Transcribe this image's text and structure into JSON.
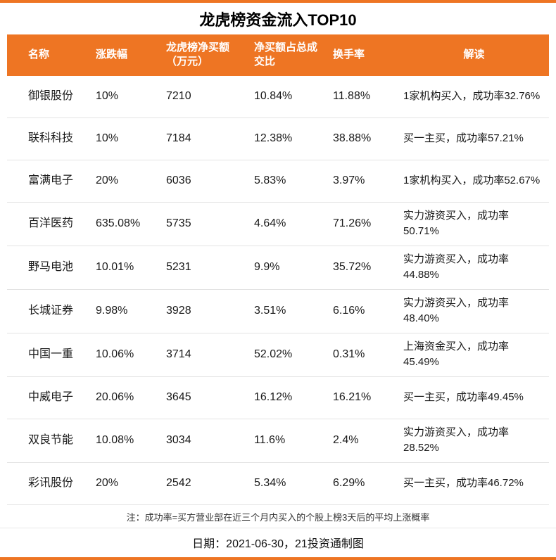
{
  "colors": {
    "accent": "#EE7523",
    "row_border": "#E3E3E3"
  },
  "chart_data": {
    "type": "table",
    "title": "龙虎榜资金流入TOP10",
    "columns": [
      "名称",
      "涨跌幅",
      "龙虎榜净买额（万元）",
      "净买额占总成交比",
      "换手率",
      "解读"
    ],
    "rows": [
      [
        "御银股份",
        "10%",
        "7210",
        "10.84%",
        "11.88%",
        "1家机构买入，成功率32.76%"
      ],
      [
        "联科科技",
        "10%",
        "7184",
        "12.38%",
        "38.88%",
        "买一主买，成功率57.21%"
      ],
      [
        "富满电子",
        "20%",
        "6036",
        "5.83%",
        "3.97%",
        "1家机构买入，成功率52.67%"
      ],
      [
        "百洋医药",
        "635.08%",
        "5735",
        "4.64%",
        "71.26%",
        "实力游资买入，成功率50.71%"
      ],
      [
        "野马电池",
        "10.01%",
        "5231",
        "9.9%",
        "35.72%",
        "实力游资买入，成功率44.88%"
      ],
      [
        "长城证券",
        "9.98%",
        "3928",
        "3.51%",
        "6.16%",
        "实力游资买入，成功率48.40%"
      ],
      [
        "中国一重",
        "10.06%",
        "3714",
        "52.02%",
        "0.31%",
        "上海资金买入，成功率45.49%"
      ],
      [
        "中威电子",
        "20.06%",
        "3645",
        "16.12%",
        "16.21%",
        "买一主买，成功率49.45%"
      ],
      [
        "双良节能",
        "10.08%",
        "3034",
        "11.6%",
        "2.4%",
        "实力游资买入，成功率28.52%"
      ],
      [
        "彩讯股份",
        "20%",
        "2542",
        "5.34%",
        "6.29%",
        "买一主买，成功率46.72%"
      ]
    ],
    "legend_position": "none",
    "grid": "horizontal-row-lines"
  },
  "footer": {
    "note": "注：成功率=买方营业部在近三个月内买入的个股上榜3天后的平均上涨概率",
    "date_line": "日期：2021-06-30，21投资通制图"
  }
}
